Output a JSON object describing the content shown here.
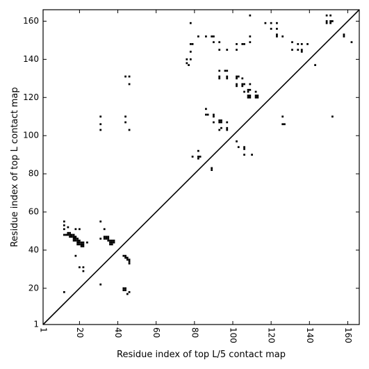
{
  "chart_data": {
    "type": "scatter",
    "xlabel": "Residue index of top L/5 contact map",
    "ylabel": "Residue index of top L contact map",
    "xlim": [
      1,
      166
    ],
    "ylim": [
      1,
      166
    ],
    "x_ticks": [
      1,
      20,
      40,
      60,
      80,
      100,
      120,
      140,
      160
    ],
    "y_ticks": [
      1,
      20,
      40,
      60,
      80,
      100,
      120,
      140,
      160
    ],
    "x_tick_labels": [
      "1",
      "20",
      "40",
      "60",
      "80",
      "100",
      "120",
      "140",
      "160"
    ],
    "y_tick_labels": [
      "1",
      "20",
      "40",
      "60",
      "80",
      "100",
      "120",
      "140",
      "160"
    ],
    "x_tick_rotation_deg": 90,
    "diagonal_line": true,
    "marker": "square",
    "color": "#000000",
    "points": [
      [
        12,
        55
      ],
      [
        12,
        53
      ],
      [
        12,
        51
      ],
      [
        12,
        48
      ],
      [
        13,
        48
      ],
      [
        14,
        52
      ],
      [
        14,
        49
      ],
      [
        14,
        48
      ],
      [
        15,
        49
      ],
      [
        15,
        48
      ],
      [
        15,
        47
      ],
      [
        16,
        48
      ],
      [
        16,
        47
      ],
      [
        17,
        48
      ],
      [
        17,
        47
      ],
      [
        17,
        46
      ],
      [
        17,
        45
      ],
      [
        18,
        51
      ],
      [
        18,
        47
      ],
      [
        18,
        46
      ],
      [
        18,
        45
      ],
      [
        18,
        37
      ],
      [
        19,
        46
      ],
      [
        19,
        45
      ],
      [
        19,
        44
      ],
      [
        19,
        43
      ],
      [
        20,
        51
      ],
      [
        20,
        45
      ],
      [
        20,
        44
      ],
      [
        20,
        43
      ],
      [
        20,
        31
      ],
      [
        21,
        44
      ],
      [
        21,
        43
      ],
      [
        21,
        42
      ],
      [
        22,
        44
      ],
      [
        22,
        43
      ],
      [
        22,
        42
      ],
      [
        22,
        31
      ],
      [
        22,
        29
      ],
      [
        24,
        44
      ],
      [
        12,
        18
      ],
      [
        31,
        110
      ],
      [
        31,
        106
      ],
      [
        31,
        103
      ],
      [
        31,
        55
      ],
      [
        31,
        46
      ],
      [
        31,
        22
      ],
      [
        33,
        51
      ],
      [
        33,
        47
      ],
      [
        33,
        46
      ],
      [
        34,
        47
      ],
      [
        34,
        46
      ],
      [
        35,
        47
      ],
      [
        35,
        46
      ],
      [
        35,
        45
      ],
      [
        36,
        45
      ],
      [
        36,
        44
      ],
      [
        36,
        43
      ],
      [
        37,
        45
      ],
      [
        37,
        44
      ],
      [
        37,
        43
      ],
      [
        38,
        45
      ],
      [
        38,
        44
      ],
      [
        43,
        37
      ],
      [
        43,
        20
      ],
      [
        43,
        19
      ],
      [
        44,
        131
      ],
      [
        44,
        110
      ],
      [
        44,
        107
      ],
      [
        44,
        37
      ],
      [
        44,
        36
      ],
      [
        44,
        20
      ],
      [
        44,
        19
      ],
      [
        45,
        36
      ],
      [
        45,
        35
      ],
      [
        45,
        17
      ],
      [
        46,
        131
      ],
      [
        46,
        127
      ],
      [
        46,
        103
      ],
      [
        46,
        35
      ],
      [
        46,
        34
      ],
      [
        46,
        33
      ],
      [
        46,
        18
      ],
      [
        76,
        140
      ],
      [
        76,
        138
      ],
      [
        77,
        137
      ],
      [
        78,
        159
      ],
      [
        78,
        148
      ],
      [
        78,
        144
      ],
      [
        78,
        140
      ],
      [
        79,
        148
      ],
      [
        79,
        89
      ],
      [
        82,
        152
      ],
      [
        82,
        92
      ],
      [
        82,
        89
      ],
      [
        82,
        88
      ],
      [
        83,
        89
      ],
      [
        86,
        152
      ],
      [
        86,
        114
      ],
      [
        86,
        111
      ],
      [
        87,
        111
      ],
      [
        89,
        152
      ],
      [
        89,
        83
      ],
      [
        89,
        82
      ],
      [
        90,
        152
      ],
      [
        90,
        149
      ],
      [
        90,
        111
      ],
      [
        90,
        110
      ],
      [
        90,
        107
      ],
      [
        93,
        149
      ],
      [
        93,
        145
      ],
      [
        93,
        134
      ],
      [
        93,
        131
      ],
      [
        93,
        130
      ],
      [
        93,
        108
      ],
      [
        93,
        107
      ],
      [
        93,
        103
      ],
      [
        94,
        108
      ],
      [
        94,
        107
      ],
      [
        94,
        104
      ],
      [
        96,
        134
      ],
      [
        97,
        145
      ],
      [
        97,
        134
      ],
      [
        97,
        131
      ],
      [
        97,
        130
      ],
      [
        97,
        107
      ],
      [
        97,
        104
      ],
      [
        97,
        103
      ],
      [
        102,
        148
      ],
      [
        102,
        145
      ],
      [
        102,
        131
      ],
      [
        102,
        130
      ],
      [
        102,
        127
      ],
      [
        102,
        126
      ],
      [
        102,
        97
      ],
      [
        103,
        131
      ],
      [
        103,
        94
      ],
      [
        105,
        130
      ],
      [
        105,
        148
      ],
      [
        105,
        127
      ],
      [
        105,
        126
      ],
      [
        106,
        148
      ],
      [
        106,
        127
      ],
      [
        106,
        123
      ],
      [
        106,
        94
      ],
      [
        106,
        93
      ],
      [
        106,
        90
      ],
      [
        108,
        124
      ],
      [
        108,
        123
      ],
      [
        108,
        121
      ],
      [
        108,
        120
      ],
      [
        109,
        163
      ],
      [
        109,
        152
      ],
      [
        109,
        149
      ],
      [
        109,
        127
      ],
      [
        109,
        124
      ],
      [
        109,
        121
      ],
      [
        109,
        120
      ],
      [
        110,
        90
      ],
      [
        112,
        123
      ],
      [
        112,
        121
      ],
      [
        112,
        120
      ],
      [
        113,
        121
      ],
      [
        113,
        120
      ],
      [
        117,
        159
      ],
      [
        120,
        159
      ],
      [
        120,
        156
      ],
      [
        123,
        159
      ],
      [
        123,
        156
      ],
      [
        123,
        153
      ],
      [
        123,
        152
      ],
      [
        126,
        152
      ],
      [
        126,
        110
      ],
      [
        126,
        106
      ],
      [
        127,
        106
      ],
      [
        131,
        149
      ],
      [
        131,
        145
      ],
      [
        134,
        148
      ],
      [
        134,
        145
      ],
      [
        136,
        148
      ],
      [
        136,
        145
      ],
      [
        136,
        144
      ],
      [
        139,
        148
      ],
      [
        143,
        137
      ],
      [
        149,
        163
      ],
      [
        149,
        160
      ],
      [
        149,
        159
      ],
      [
        151,
        163
      ],
      [
        151,
        160
      ],
      [
        151,
        159
      ],
      [
        152,
        160
      ],
      [
        152,
        110
      ],
      [
        158,
        153
      ],
      [
        158,
        152
      ],
      [
        162,
        149
      ]
    ]
  }
}
